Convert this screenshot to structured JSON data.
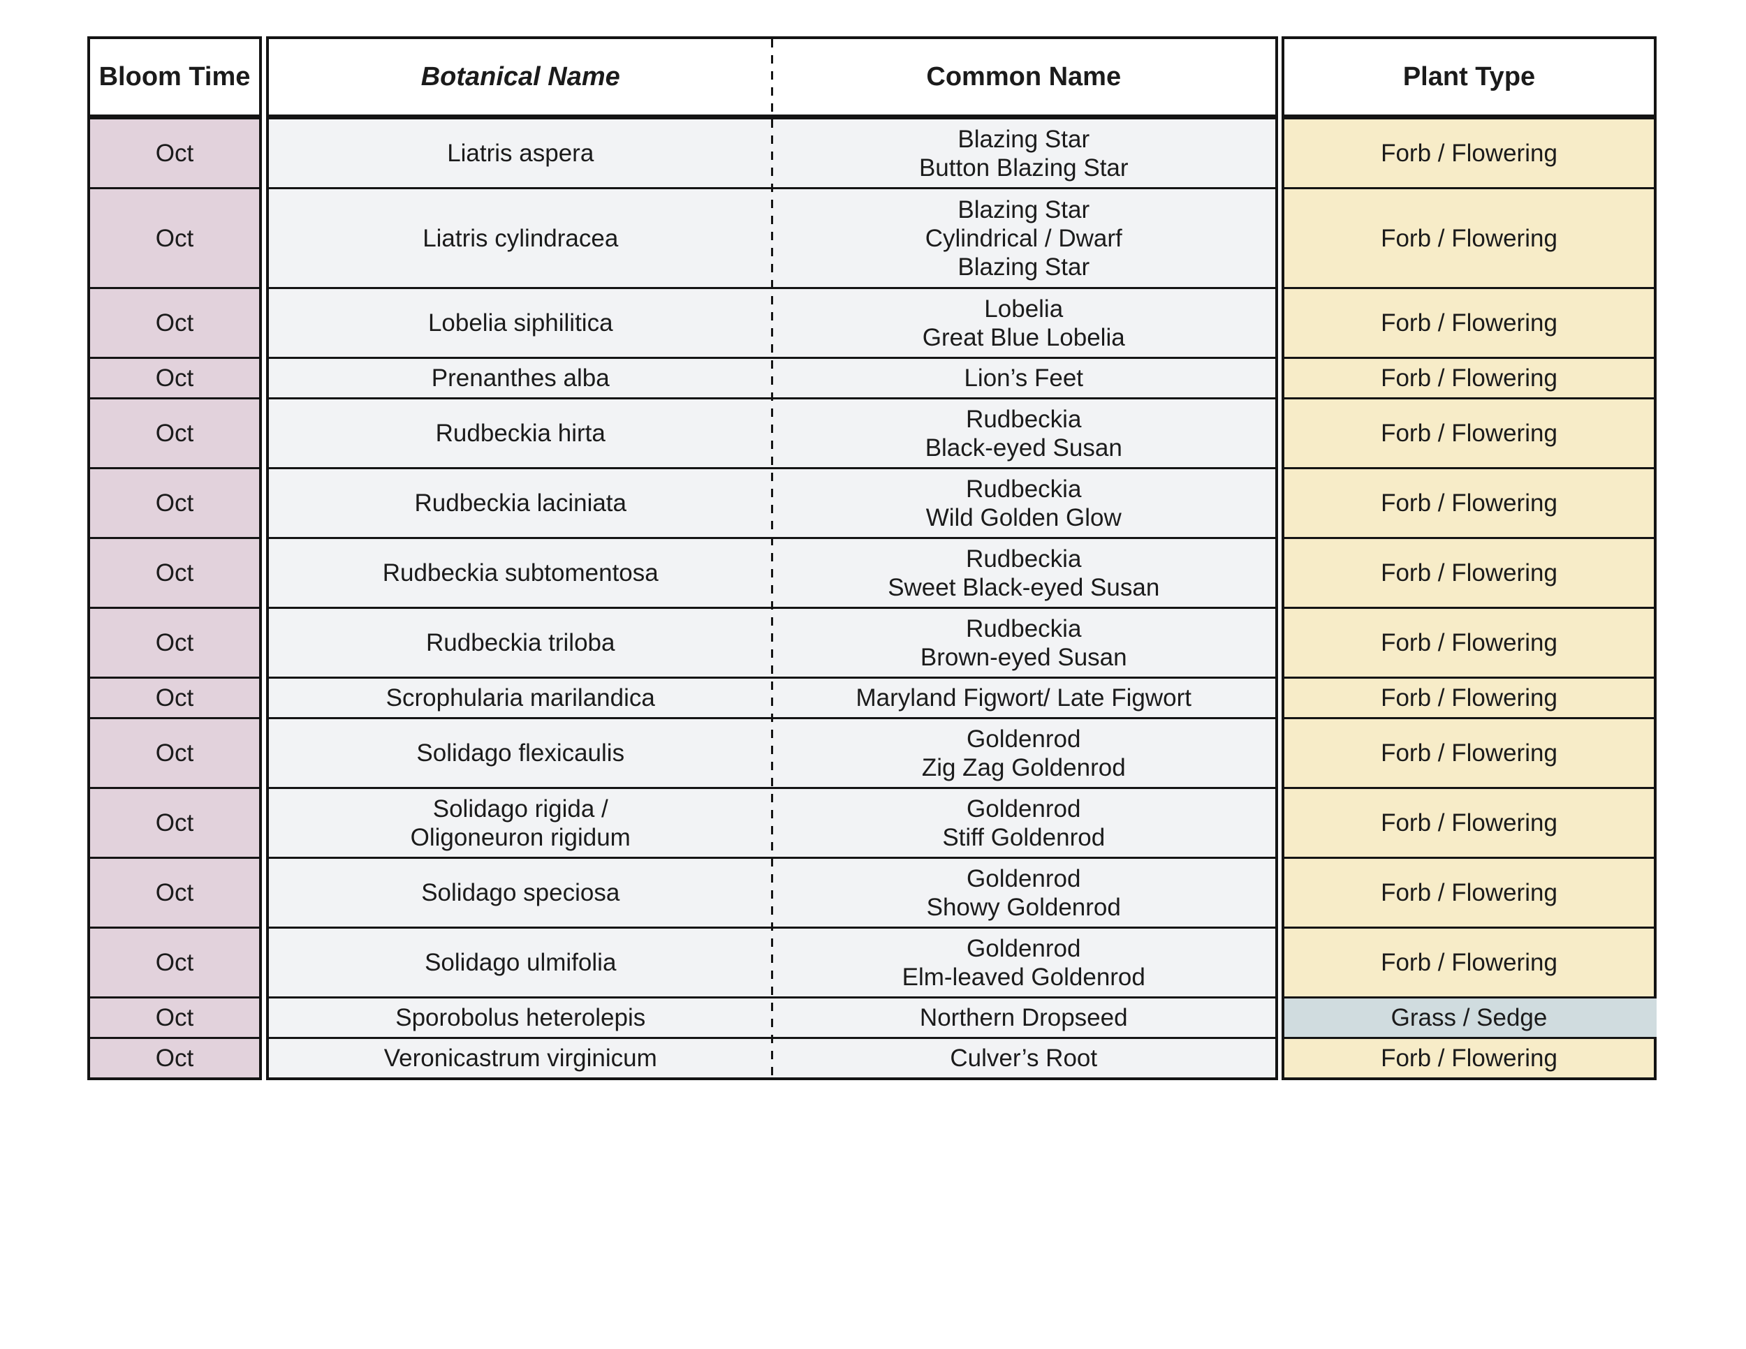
{
  "table": {
    "headers": {
      "bloom": "Bloom Time",
      "botanical": "Botanical Name",
      "common": "Common Name",
      "type": "Plant Type"
    },
    "rows": [
      {
        "bloom": "Oct",
        "botanical": "Liatris aspera",
        "common": "Blazing Star\nButton Blazing Star",
        "type": "Forb / Flowering",
        "type_key": "forb"
      },
      {
        "bloom": "Oct",
        "botanical": "Liatris cylindracea",
        "common": "Blazing Star\nCylindrical / Dwarf\nBlazing Star",
        "type": "Forb / Flowering",
        "type_key": "forb"
      },
      {
        "bloom": "Oct",
        "botanical": "Lobelia siphilitica",
        "common": "Lobelia\nGreat Blue Lobelia",
        "type": "Forb / Flowering",
        "type_key": "forb"
      },
      {
        "bloom": "Oct",
        "botanical": "Prenanthes alba",
        "common": "Lion’s Feet",
        "type": "Forb / Flowering",
        "type_key": "forb"
      },
      {
        "bloom": "Oct",
        "botanical": "Rudbeckia hirta",
        "common": "Rudbeckia\nBlack-eyed Susan",
        "type": "Forb / Flowering",
        "type_key": "forb"
      },
      {
        "bloom": "Oct",
        "botanical": "Rudbeckia laciniata",
        "common": "Rudbeckia\nWild Golden Glow",
        "type": "Forb / Flowering",
        "type_key": "forb"
      },
      {
        "bloom": "Oct",
        "botanical": "Rudbeckia subtomentosa",
        "common": "Rudbeckia\nSweet Black-eyed Susan",
        "type": "Forb / Flowering",
        "type_key": "forb"
      },
      {
        "bloom": "Oct",
        "botanical": "Rudbeckia triloba",
        "common": "Rudbeckia\nBrown-eyed Susan",
        "type": "Forb / Flowering",
        "type_key": "forb"
      },
      {
        "bloom": "Oct",
        "botanical": "Scrophularia marilandica",
        "common": "Maryland Figwort/ Late Figwort",
        "type": "Forb / Flowering",
        "type_key": "forb"
      },
      {
        "bloom": "Oct",
        "botanical": "Solidago flexicaulis",
        "common": "Goldenrod\nZig Zag Goldenrod",
        "type": "Forb / Flowering",
        "type_key": "forb"
      },
      {
        "bloom": "Oct",
        "botanical": "Solidago rigida /\nOligoneuron rigidum",
        "common": "Goldenrod\nStiff Goldenrod",
        "type": "Forb / Flowering",
        "type_key": "forb"
      },
      {
        "bloom": "Oct",
        "botanical": "Solidago speciosa",
        "common": "Goldenrod\nShowy Goldenrod",
        "type": "Forb / Flowering",
        "type_key": "forb"
      },
      {
        "bloom": "Oct",
        "botanical": "Solidago ulmifolia",
        "common": "Goldenrod\nElm-leaved Goldenrod",
        "type": "Forb / Flowering",
        "type_key": "forb"
      },
      {
        "bloom": "Oct",
        "botanical": "Sporobolus heterolepis",
        "common": "Northern Dropseed",
        "type": "Grass / Sedge",
        "type_key": "grass"
      },
      {
        "bloom": "Oct",
        "botanical": "Veronicastrum virginicum",
        "common": "Culver’s Root",
        "type": "Forb / Flowering",
        "type_key": "forb"
      }
    ]
  },
  "colors": {
    "border": "#141414",
    "bloom_cell": "#e2d2dc",
    "name_cell": "#f2f3f5",
    "forb": "#f7ecc8",
    "grass": "#d0dcdf",
    "text": "#1b1b1b"
  }
}
